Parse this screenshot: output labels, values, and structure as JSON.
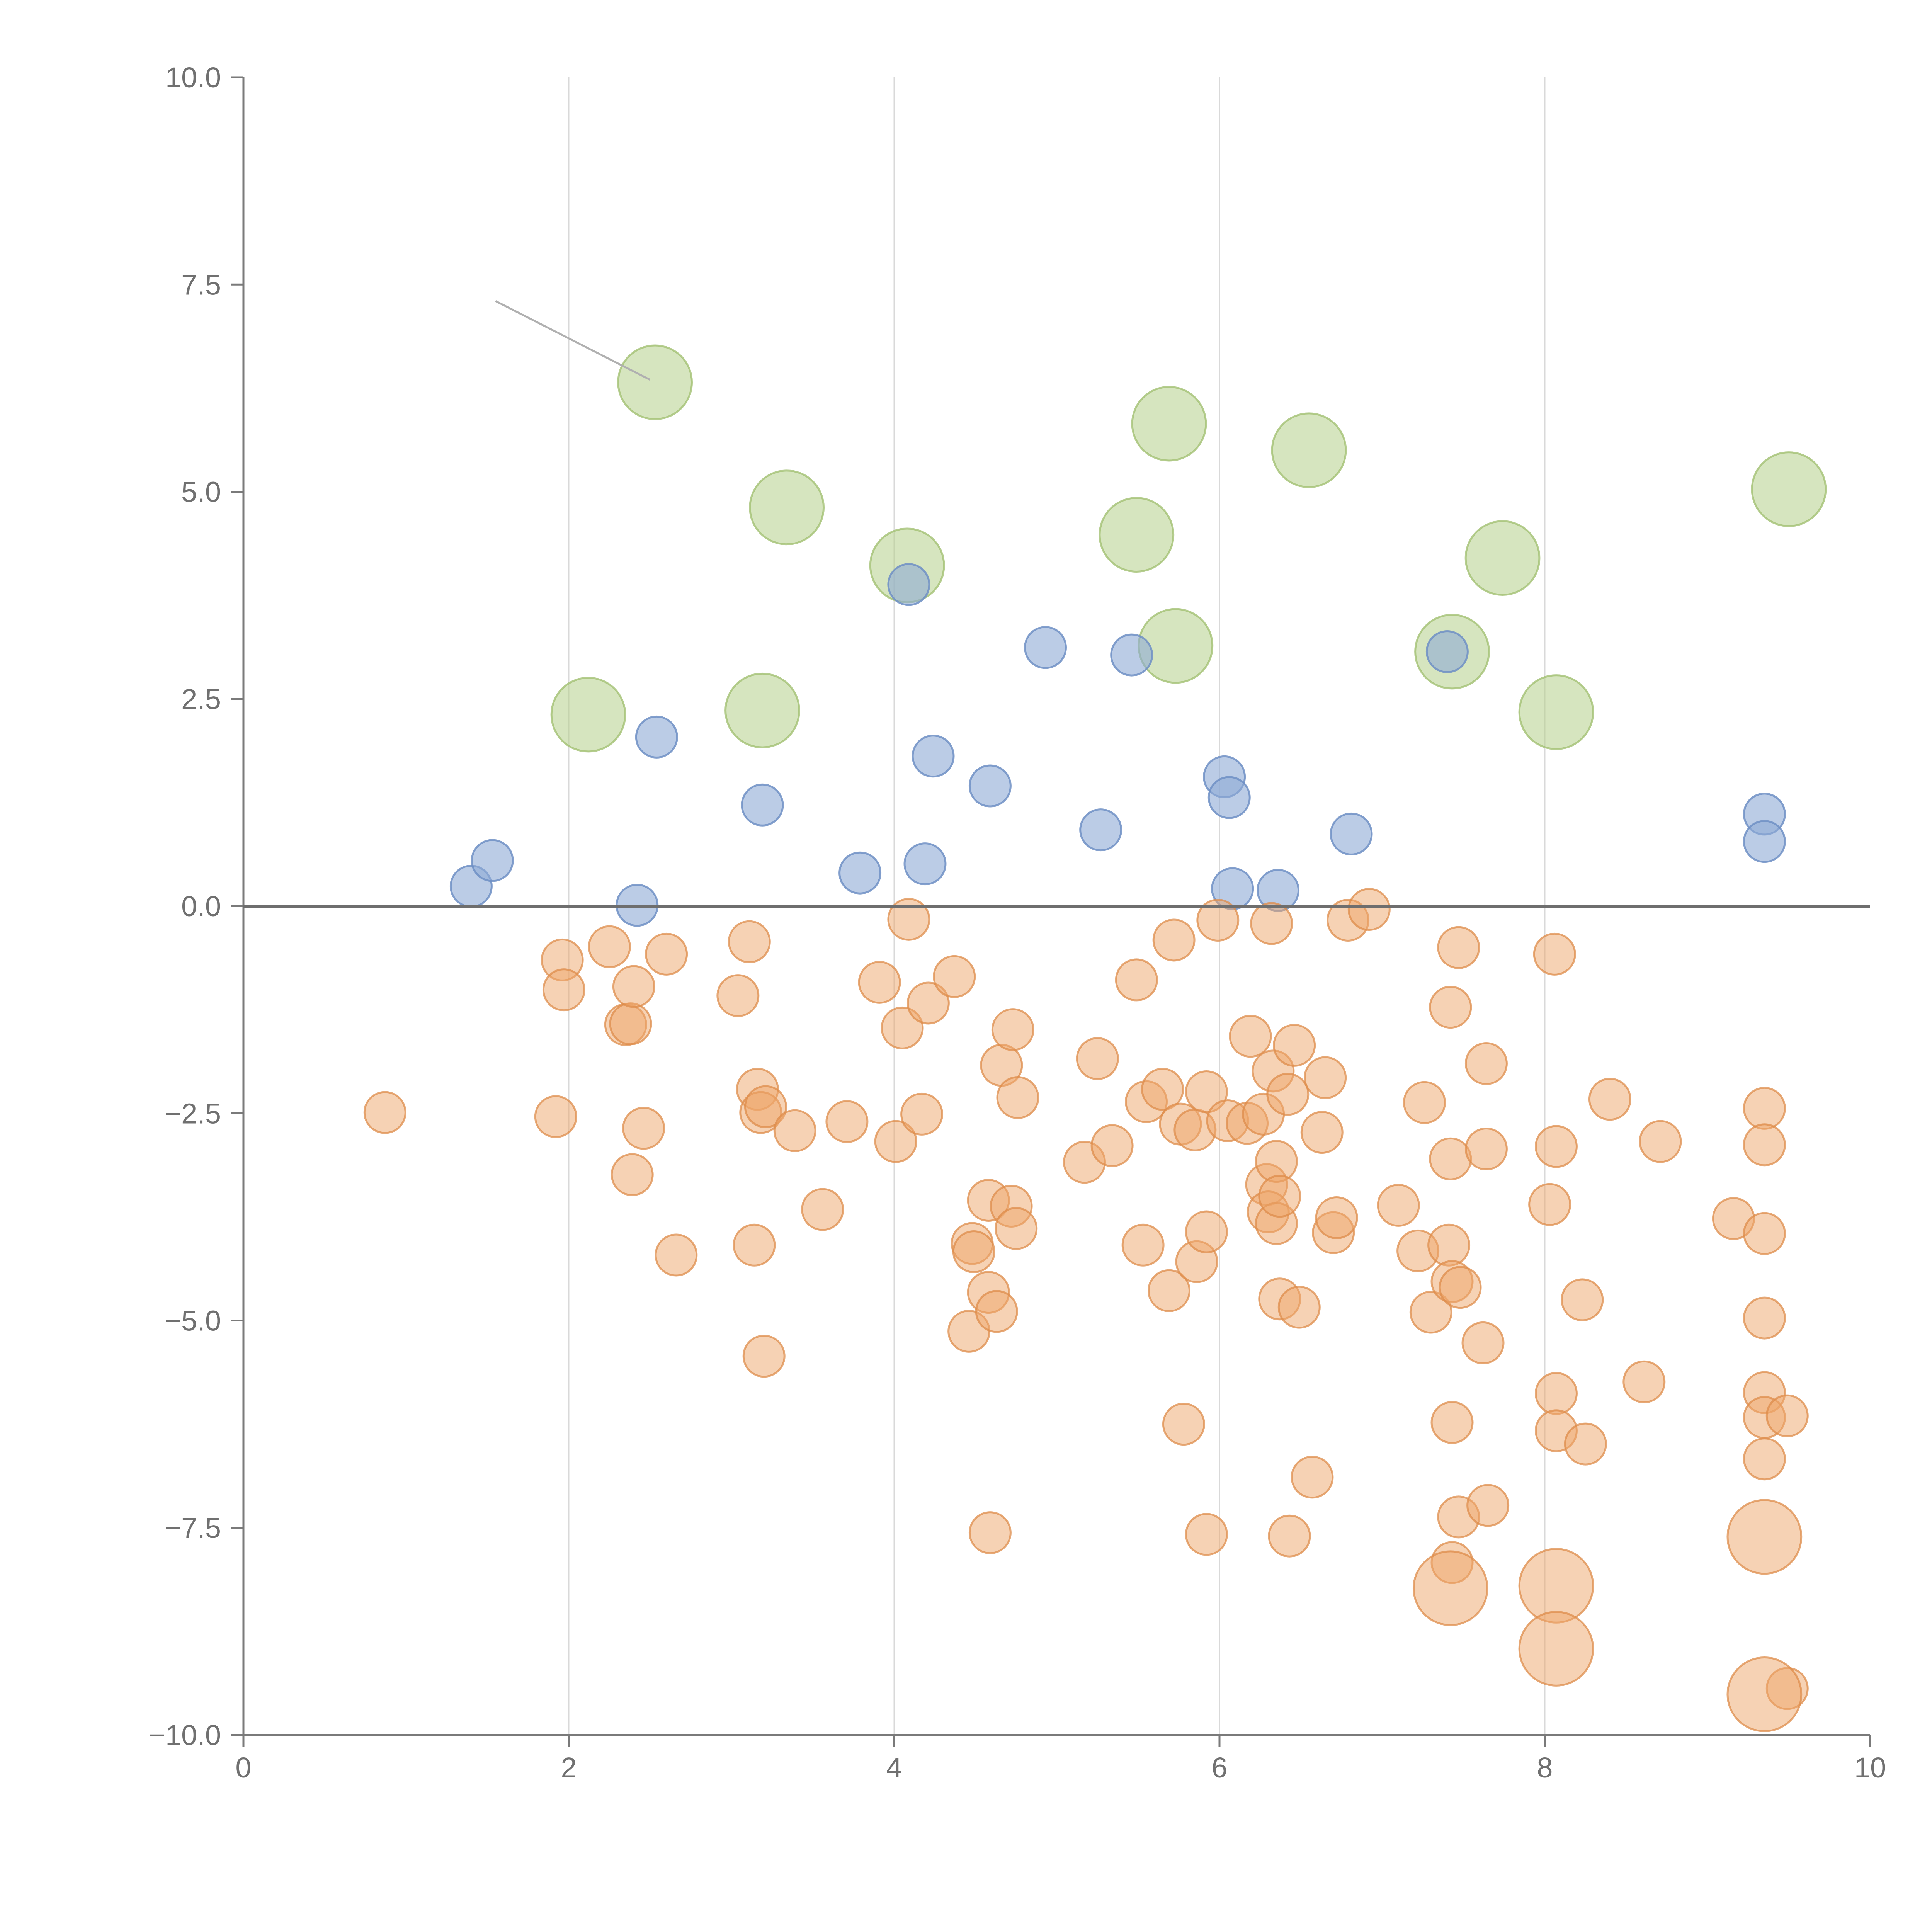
{
  "chart_data": {
    "type": "scatter",
    "title": "",
    "xlabel": "",
    "ylabel": "",
    "xlim": [
      0,
      10
    ],
    "ylim": [
      -10,
      10
    ],
    "x_ticks": [
      0,
      2,
      4,
      6,
      8,
      10
    ],
    "x_tick_labels": [
      "0",
      "2",
      "4",
      "6",
      "8",
      "10"
    ],
    "y_ticks": [
      -10,
      -7.5,
      -5,
      -2.5,
      0,
      2.5,
      5,
      7.5,
      10
    ],
    "y_tick_labels": [
      "−10.0",
      "−7.5",
      "−5.0",
      "−2.5",
      "0.0",
      "2.5",
      "5.0",
      "7.5",
      "10.0"
    ],
    "vertical_gridlines_at": [
      2,
      4,
      6,
      8
    ],
    "reference_line_y": 0,
    "legend": "none",
    "series": [
      {
        "name": "green",
        "color": "#b5d08a",
        "stroke": "#a3c073",
        "opacity": 0.55,
        "marker_size": 1.8,
        "points": [
          [
            2.53,
            6.32
          ],
          [
            3.34,
            4.81
          ],
          [
            4.08,
            4.11
          ],
          [
            5.69,
            5.82
          ],
          [
            6.55,
            5.5
          ],
          [
            9.5,
            5.03
          ],
          [
            5.49,
            4.48
          ],
          [
            7.74,
            4.2
          ],
          [
            5.73,
            3.14
          ],
          [
            7.43,
            3.07
          ],
          [
            2.12,
            2.31
          ],
          [
            3.19,
            2.36
          ],
          [
            8.07,
            2.34
          ]
        ]
      },
      {
        "name": "blue",
        "color": "#8eaad6",
        "stroke": "#6f8fc4",
        "opacity": 0.6,
        "marker_size": 1.0,
        "points": [
          [
            1.4,
            0.24
          ],
          [
            1.53,
            0.55
          ],
          [
            2.42,
            0.01
          ],
          [
            2.54,
            2.04
          ],
          [
            3.19,
            1.22
          ],
          [
            3.79,
            0.4
          ],
          [
            4.09,
            3.88
          ],
          [
            4.19,
            0.51
          ],
          [
            4.24,
            1.81
          ],
          [
            4.59,
            1.45
          ],
          [
            4.93,
            3.12
          ],
          [
            5.27,
            0.92
          ],
          [
            5.46,
            3.03
          ],
          [
            6.03,
            1.56
          ],
          [
            6.06,
            1.31
          ],
          [
            6.08,
            0.21
          ],
          [
            6.36,
            0.19
          ],
          [
            6.81,
            0.87
          ],
          [
            7.4,
            3.07
          ],
          [
            9.35,
            1.11
          ],
          [
            9.35,
            0.78
          ]
        ]
      },
      {
        "name": "orange",
        "color": "#eda66a",
        "stroke": "#dd8c4b",
        "opacity": 0.5,
        "marker_size": 1.0,
        "points": [
          [
            0.87,
            -2.49
          ],
          [
            1.92,
            -2.54
          ],
          [
            1.96,
            -0.65
          ],
          [
            1.97,
            -1.01
          ],
          [
            2.25,
            -0.49
          ],
          [
            2.35,
            -1.43
          ],
          [
            2.38,
            -1.42
          ],
          [
            2.39,
            -3.24
          ],
          [
            2.4,
            -0.97
          ],
          [
            2.46,
            -2.68
          ],
          [
            2.6,
            -0.58
          ],
          [
            2.66,
            -4.21
          ],
          [
            3.04,
            -1.08
          ],
          [
            3.11,
            -0.43
          ],
          [
            3.14,
            -4.09
          ],
          [
            3.16,
            -2.21
          ],
          [
            3.18,
            -2.49
          ],
          [
            3.21,
            -2.42
          ],
          [
            3.2,
            -5.43
          ],
          [
            3.39,
            -2.71
          ],
          [
            3.56,
            -3.66
          ],
          [
            3.71,
            -2.6
          ],
          [
            3.91,
            -0.92
          ],
          [
            4.01,
            -2.84
          ],
          [
            4.05,
            -1.47
          ],
          [
            4.09,
            -0.16
          ],
          [
            4.17,
            -2.51
          ],
          [
            4.21,
            -1.17
          ],
          [
            4.37,
            -0.85
          ],
          [
            4.46,
            -5.13
          ],
          [
            4.48,
            -4.07
          ],
          [
            4.49,
            -4.17
          ],
          [
            4.58,
            -3.55
          ],
          [
            4.58,
            -4.66
          ],
          [
            4.59,
            -7.56
          ],
          [
            4.63,
            -4.89
          ],
          [
            4.66,
            -1.92
          ],
          [
            4.72,
            -3.62
          ],
          [
            4.73,
            -1.49
          ],
          [
            4.75,
            -3.89
          ],
          [
            4.76,
            -2.31
          ],
          [
            5.17,
            -3.09
          ],
          [
            5.25,
            -1.84
          ],
          [
            5.34,
            -2.89
          ],
          [
            5.49,
            -0.89
          ],
          [
            5.53,
            -4.09
          ],
          [
            5.55,
            -2.36
          ],
          [
            5.65,
            -2.21
          ],
          [
            5.69,
            -4.64
          ],
          [
            5.72,
            -0.41
          ],
          [
            5.76,
            -2.63
          ],
          [
            5.78,
            -6.25
          ],
          [
            5.85,
            -2.7
          ],
          [
            5.86,
            -4.29
          ],
          [
            5.92,
            -3.93
          ],
          [
            5.92,
            -2.24
          ],
          [
            5.92,
            -7.58
          ],
          [
            5.99,
            -0.17
          ],
          [
            6.05,
            -2.59
          ],
          [
            6.17,
            -2.62
          ],
          [
            6.19,
            -1.57
          ],
          [
            6.27,
            -2.51
          ],
          [
            6.29,
            -3.36
          ],
          [
            6.3,
            -3.69
          ],
          [
            6.32,
            -0.21
          ],
          [
            6.33,
            -1.99
          ],
          [
            6.35,
            -3.83
          ],
          [
            6.35,
            -3.08
          ],
          [
            6.37,
            -3.5
          ],
          [
            6.37,
            -4.74
          ],
          [
            6.42,
            -2.27
          ],
          [
            6.43,
            -7.6
          ],
          [
            6.46,
            -1.68
          ],
          [
            6.49,
            -4.84
          ],
          [
            6.57,
            -6.89
          ],
          [
            6.63,
            -2.73
          ],
          [
            6.65,
            -2.07
          ],
          [
            6.7,
            -3.94
          ],
          [
            6.72,
            -3.76
          ],
          [
            6.79,
            -0.17
          ],
          [
            6.92,
            -0.04
          ],
          [
            7.1,
            -3.61
          ],
          [
            7.22,
            -4.16
          ],
          [
            7.26,
            -2.37
          ],
          [
            7.3,
            -4.9
          ],
          [
            7.41,
            -4.09
          ],
          [
            7.42,
            -3.05
          ],
          [
            7.42,
            -1.22
          ],
          [
            7.43,
            -6.23
          ],
          [
            7.43,
            -4.53
          ],
          [
            7.47,
            -0.5
          ],
          [
            7.48,
            -4.6
          ],
          [
            7.47,
            -7.37
          ],
          [
            7.62,
            -5.27
          ],
          [
            7.64,
            -1.9
          ],
          [
            7.64,
            -2.93
          ],
          [
            7.65,
            -7.23
          ],
          [
            8.06,
            -0.58
          ],
          [
            8.03,
            -3.6
          ],
          [
            8.07,
            -2.9
          ],
          [
            8.07,
            -5.88
          ],
          [
            8.07,
            -6.33
          ],
          [
            8.23,
            -4.75
          ],
          [
            8.25,
            -6.49
          ],
          [
            8.4,
            -2.33
          ],
          [
            8.61,
            -5.74
          ],
          [
            8.71,
            -2.84
          ],
          [
            9.16,
            -3.77
          ],
          [
            9.35,
            -2.44
          ],
          [
            9.35,
            -2.88
          ],
          [
            9.35,
            -3.95
          ],
          [
            9.35,
            -4.97
          ],
          [
            9.35,
            -5.87
          ],
          [
            9.35,
            -6.17
          ],
          [
            9.35,
            -6.67
          ],
          [
            9.49,
            -6.15
          ],
          [
            9.49,
            -9.44
          ],
          [
            7.43,
            -7.92
          ]
        ]
      },
      {
        "name": "orange-large",
        "color": "#eda66a",
        "stroke": "#dd8c4b",
        "opacity": 0.5,
        "marker_size": 1.8,
        "points": [
          [
            7.42,
            -8.23
          ],
          [
            8.07,
            -8.2
          ],
          [
            8.07,
            -8.96
          ],
          [
            9.35,
            -7.61
          ],
          [
            9.35,
            -9.51
          ]
        ]
      }
    ],
    "annotations": {
      "leader_line": {
        "from": [
          1.55,
          7.3
        ],
        "to": [
          2.5,
          6.35
        ]
      }
    }
  }
}
